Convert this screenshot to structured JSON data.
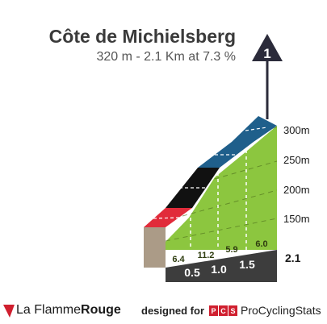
{
  "climb": {
    "title": "Côte de Michielsberg",
    "subtitle": "320 m - 2.1 Km at 7.3 %",
    "marker": "1"
  },
  "chart_data": {
    "type": "area",
    "title": "Côte de Michielsberg",
    "subtitle": "320 m - 2.1 Km at 7.3 %",
    "x_unit": "km",
    "y_unit": "m",
    "total_distance_label": "2.1",
    "km_markers": [
      "0.5",
      "1.0",
      "1.5"
    ],
    "altitude_ticks": [
      "150m",
      "200m",
      "250m",
      "300m"
    ],
    "segments": [
      {
        "from_km": 0.0,
        "to_km": 0.5,
        "gradient": "6.4",
        "color": "#e12b3a"
      },
      {
        "from_km": 0.5,
        "to_km": 1.0,
        "gradient": "11.2",
        "color": "#111111"
      },
      {
        "from_km": 1.0,
        "to_km": 1.5,
        "gradient": "5.9",
        "color": "#1f5f8b"
      },
      {
        "from_km": 1.5,
        "to_km": 2.1,
        "gradient": "6.0",
        "color": "#1f5f8b"
      }
    ],
    "colors": {
      "fill": "#8cc63f",
      "base": "#ab9b87",
      "distance_bar": "#3d3d3d"
    }
  },
  "footer": {
    "logo_prefix": "La Flamme",
    "logo_suffix": "Rouge",
    "designed_for": "designed for",
    "pcs_badge": "PCS",
    "pcs_name": "ProCyclingStats"
  }
}
